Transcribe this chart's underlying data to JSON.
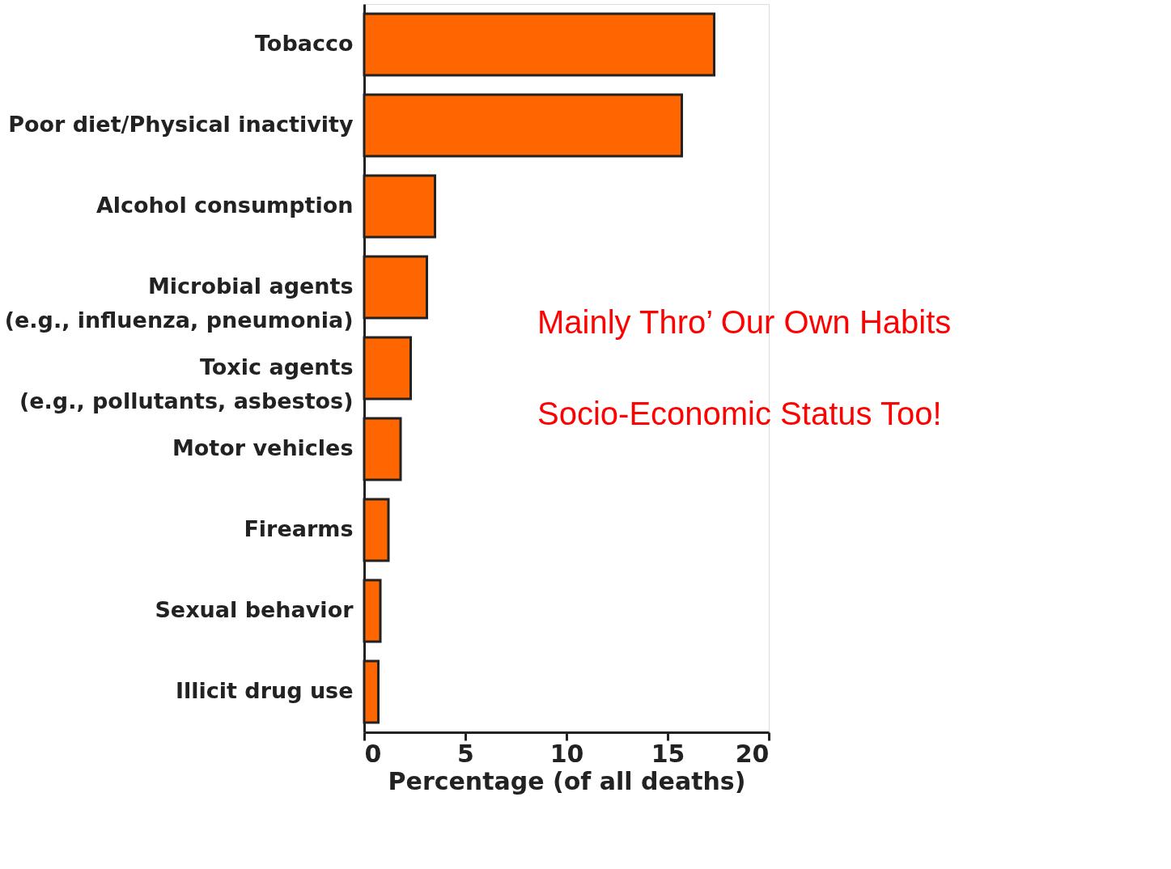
{
  "chart_data": {
    "type": "bar",
    "orientation": "horizontal",
    "categories": [
      "Tobacco",
      "Poor diet/Physical inactivity",
      "Alcohol consumption",
      "Microbial agents\n(e.g., influenza, pneumonia)",
      "Toxic agents\n(e.g., pollutants, asbestos)",
      "Motor vehicles",
      "Firearms",
      "Sexual behavior",
      "Illicit drug use"
    ],
    "values": [
      17.3,
      15.7,
      3.5,
      3.1,
      2.3,
      1.8,
      1.2,
      0.8,
      0.7
    ],
    "color": "#ff6600",
    "xlabel": "Percentage (of all deaths)",
    "xlim": [
      0,
      20
    ],
    "xticks": [
      0,
      5,
      10,
      15,
      20
    ],
    "annotations": [
      "Mainly Thro’ Our Own Habits",
      "Socio-Economic Status Too!"
    ]
  }
}
